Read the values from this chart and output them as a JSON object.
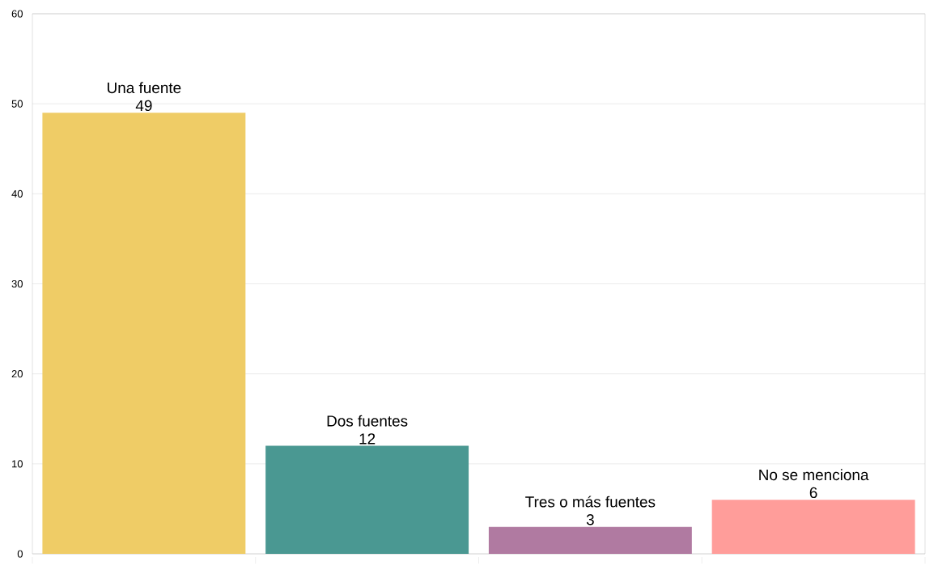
{
  "chart_data": {
    "type": "bar",
    "categories": [
      "Una fuente",
      "Dos fuentes",
      "Tres o más fuentes",
      "No se menciona"
    ],
    "values": [
      49,
      12,
      3,
      6
    ],
    "colors": [
      "#efcc66",
      "#4a9892",
      "#b07aa1",
      "#ff9d9a"
    ],
    "ylim": [
      0,
      60
    ],
    "yticks": [
      0,
      10,
      20,
      30,
      40,
      50,
      60
    ],
    "grid": "y",
    "data_labels": true,
    "tick_labels": "y"
  }
}
